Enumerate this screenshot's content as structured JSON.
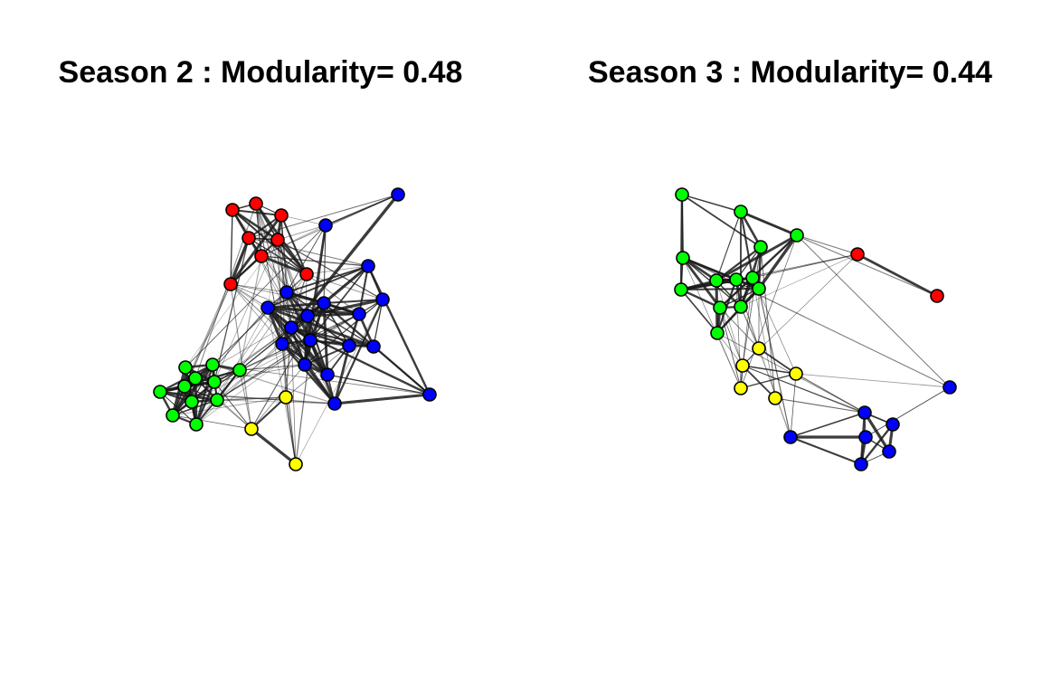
{
  "colors": {
    "red": "#ff0000",
    "blue": "#0000ff",
    "green": "#00ff00",
    "yellow": "#ffff00",
    "edge": "#1a1a1a",
    "node_border": "#000000"
  },
  "panels": [
    {
      "id": "season-2",
      "title": "Season 2 : Modularity= 0.48"
    },
    {
      "id": "season-3",
      "title": "Season 3 : Modularity= 0.44"
    }
  ]
}
